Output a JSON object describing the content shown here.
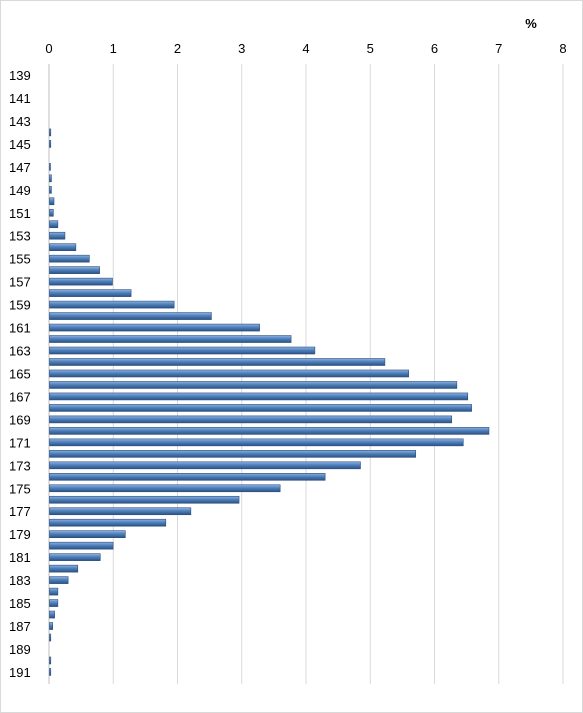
{
  "chart_data": {
    "type": "bar",
    "orientation": "horizontal",
    "unit_label": "%",
    "xlim": [
      0,
      8
    ],
    "x_ticks": [
      0,
      1,
      2,
      3,
      4,
      5,
      6,
      7,
      8
    ],
    "grid": true,
    "legend": "none",
    "bar_color": "#4f81bd",
    "categories": [
      139,
      140,
      141,
      142,
      143,
      144,
      145,
      146,
      147,
      148,
      149,
      150,
      151,
      152,
      153,
      154,
      155,
      156,
      157,
      158,
      159,
      160,
      161,
      162,
      163,
      164,
      165,
      166,
      167,
      168,
      169,
      170,
      171,
      172,
      173,
      174,
      175,
      176,
      177,
      178,
      179,
      180,
      181,
      182,
      183,
      184,
      185,
      186,
      187,
      188,
      189,
      190,
      191
    ],
    "category_labels": [
      "139",
      "141",
      "143",
      "145",
      "147",
      "149",
      "151",
      "153",
      "155",
      "157",
      "159",
      "161",
      "163",
      "165",
      "167",
      "169",
      "171",
      "173",
      "175",
      "177",
      "179",
      "181",
      "183",
      "185",
      "187",
      "189",
      "191"
    ],
    "values": [
      0,
      0,
      0,
      0,
      0,
      0.02,
      0.02,
      0,
      0.01,
      0.03,
      0.03,
      0.07,
      0.06,
      0.13,
      0.24,
      0.41,
      0.62,
      0.78,
      0.98,
      1.27,
      1.94,
      2.52,
      3.27,
      3.76,
      4.13,
      5.22,
      5.59,
      6.34,
      6.51,
      6.57,
      6.26,
      6.84,
      6.44,
      5.7,
      4.84,
      4.29,
      3.59,
      2.95,
      2.2,
      1.81,
      1.18,
      0.99,
      0.79,
      0.44,
      0.29,
      0.13,
      0.13,
      0.08,
      0.05,
      0.02,
      0,
      0.02,
      0.02
    ]
  }
}
